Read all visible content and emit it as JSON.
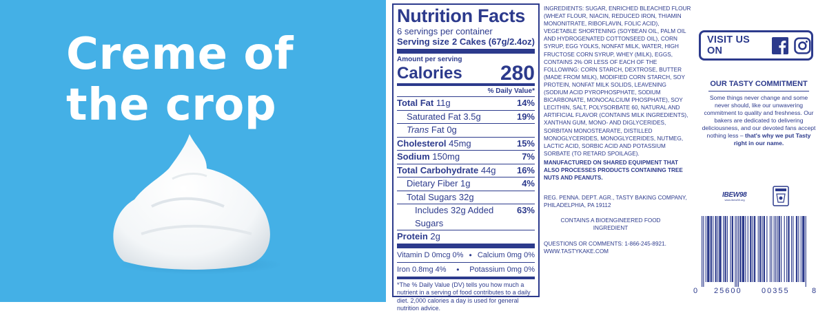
{
  "headline": {
    "line1": "Creme of",
    "line2": "the crop"
  },
  "nutrition": {
    "title": "Nutrition Facts",
    "servings": "6 servings per container",
    "serving_size_label": "Serving size",
    "serving_size_value": "2 Cakes (67g/2.4oz)",
    "amount_per_serving": "Amount per serving",
    "calories_label": "Calories",
    "calories_value": "280",
    "dv_header": "% Daily Value*",
    "rows": [
      {
        "label": "Total Fat",
        "amount": "11g",
        "pct": "14%"
      },
      {
        "label": "Saturated Fat",
        "amount": "3.5g",
        "pct": "19%"
      },
      {
        "label": "Trans",
        "label_rest": "Fat",
        "amount": "0g",
        "pct": ""
      },
      {
        "label": "Cholesterol",
        "amount": "45mg",
        "pct": "15%"
      },
      {
        "label": "Sodium",
        "amount": "150mg",
        "pct": "7%"
      },
      {
        "label": "Total Carbohydrate",
        "amount": "44g",
        "pct": "16%"
      },
      {
        "label": "Dietary Fiber",
        "amount": "1g",
        "pct": "4%"
      },
      {
        "label": "Total Sugars",
        "amount": "32g",
        "pct": ""
      },
      {
        "label": "Includes 32g Added Sugars",
        "amount": "",
        "pct": "63%"
      },
      {
        "label": "Protein",
        "amount": "2g",
        "pct": ""
      }
    ],
    "vitamins": [
      {
        "left": "Vitamin D 0mcg 0%",
        "right": "Calcium 0mg 0%"
      },
      {
        "left": "Iron 0.8mg 4%",
        "right": "Potassium 0mg 0%"
      }
    ],
    "footnote": "*The % Daily Value (DV) tells you how much a nutrient in a serving of food contributes to a daily diet. 2,000 calories a day is used for general nutrition advice."
  },
  "ingredients": {
    "text": "Ingredients: Sugar, enriched bleached flour (wheat flour, niacin, reduced iron, thiamin mononitrate, riboflavin, folic acid), vegetable shortening (soybean oil, palm oil and hydrogenated cottonseed oil), corn syrup, egg yolks, nonfat milk, water, high fructose corn syrup, whey (milk), eggs, contains 2% or less of each of the following: corn starch, dextrose, butter (made from milk), modified corn starch, soy protein, nonfat milk solids, leavening (sodium acid pyrophosphate, sodium bicarbonate, monocalcium phosphate), soy lecithin, salt, polysorbate 60, natural and artificial flavor (contains milk ingredients), xanthan gum, mono- and diglycerides, sorbitan monostearate, distilled monoglycerides, monoglycerides, nutmeg, lactic acid, sorbic acid and potassium sorbate (to retard spoilage).",
    "shared": "Manufactured on shared equipment that also processes products containing tree nuts and peanuts.",
    "reg": "Reg. Penna. Dept. Agr., Tasty Baking Company, Philadelphia, PA 19112",
    "bio": "Contains a bioengineered food ingredient",
    "questions": "Questions or comments: 1-866-245-8921. www.tastykake.com"
  },
  "visit": {
    "label": "VISIT US ON",
    "icons": [
      "facebook-icon",
      "instagram-icon"
    ]
  },
  "commitment": {
    "title": "OUR TASTY COMMITMENT",
    "body": "Some things never change and some never should, like our unwavering commitment to quality and freshness. Our bakers are dedicated to delivering deliciousness, and our devoted fans accept nothing less – ",
    "body_bold": "that's why we put Tasty right in our name."
  },
  "union": {
    "ibew": "IBEW",
    "ibew_num": "98",
    "ibew_site": "www.ibew98.org"
  },
  "barcode": {
    "first": "0",
    "middle_left": "25600",
    "middle_right": "00355",
    "last": "8"
  },
  "colors": {
    "accent_blue": "#44b0e6",
    "navy": "#2c3a8c"
  }
}
